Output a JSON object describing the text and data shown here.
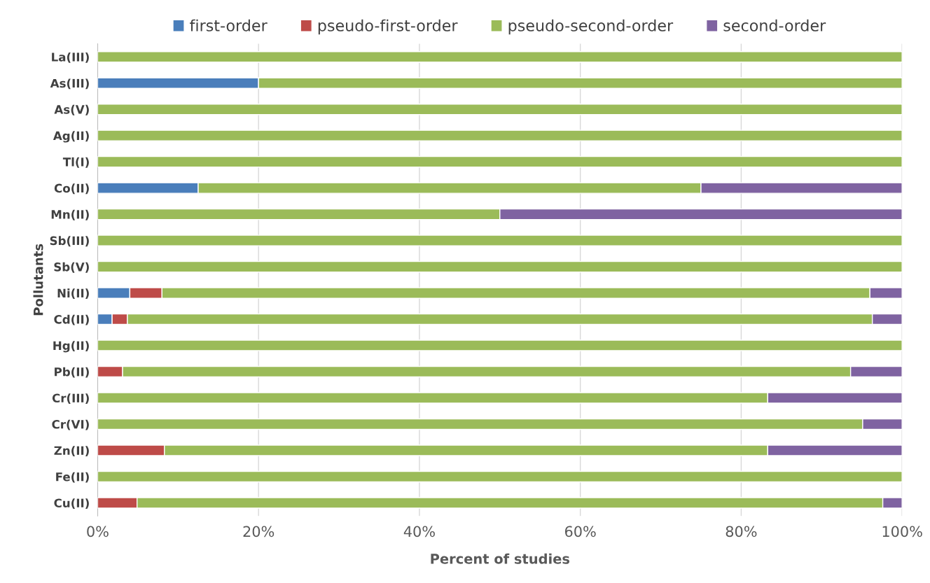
{
  "chart_data": {
    "type": "bar",
    "orientation": "horizontal",
    "stacked": true,
    "xlabel": "Percent of studies",
    "ylabel": "Pollutants",
    "categories": [
      "La(III)",
      "As(III)",
      "As(V)",
      "Ag(II)",
      "Tl(I)",
      "Co(II)",
      "Mn(II)",
      "Sb(III)",
      "Sb(V)",
      "Ni(II)",
      "Cd(II)",
      "Hg(II)",
      "Pb(II)",
      "Cr(III)",
      "Cr(VI)",
      "Zn(II)",
      "Fe(II)",
      "Cu(II)"
    ],
    "series": [
      {
        "name": "first-order",
        "color": "#4a7ebb",
        "values": [
          null,
          20,
          null,
          null,
          null,
          12.5,
          null,
          null,
          null,
          4,
          1.8,
          null,
          null,
          null,
          null,
          null,
          null,
          null
        ]
      },
      {
        "name": "pseudo-first-order",
        "color": "#be4b48",
        "values": [
          null,
          null,
          null,
          null,
          null,
          null,
          null,
          null,
          null,
          4,
          1.9,
          null,
          3.1,
          null,
          null,
          8.3,
          null,
          4.9
        ]
      },
      {
        "name": "pseudo-second-order",
        "color": "#9bbb59",
        "values": [
          100,
          80,
          100,
          100,
          100,
          62.5,
          50,
          100,
          100,
          88,
          92.6,
          100,
          90.5,
          83.3,
          95.1,
          75,
          100,
          92.7
        ]
      },
      {
        "name": "second-order",
        "color": "#7f63a1",
        "values": [
          null,
          null,
          null,
          null,
          null,
          25,
          50,
          null,
          null,
          4,
          3.7,
          null,
          6.4,
          16.7,
          4.9,
          16.7,
          null,
          2.4
        ]
      }
    ],
    "xlim": [
      0,
      100
    ],
    "xticks": [
      {
        "value": 0,
        "label": "0%"
      },
      {
        "value": 20,
        "label": "20%"
      },
      {
        "value": 40,
        "label": "40%"
      },
      {
        "value": 60,
        "label": "60%"
      },
      {
        "value": 80,
        "label": "80%"
      },
      {
        "value": 100,
        "label": "100%"
      }
    ],
    "grid": "x",
    "legend": "top"
  }
}
